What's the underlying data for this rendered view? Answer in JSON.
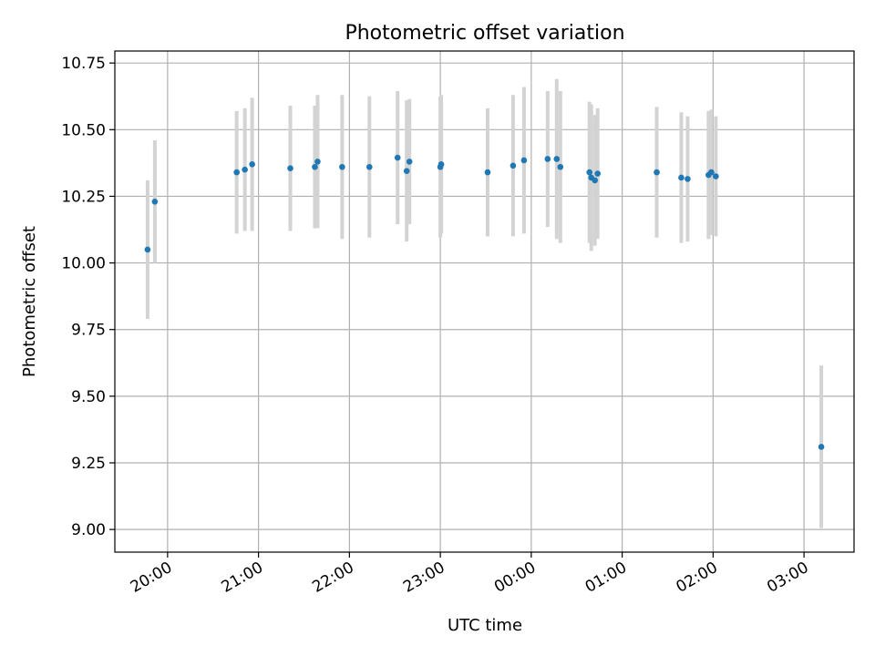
{
  "chart_data": {
    "type": "scatter",
    "title": "Photometric offset variation",
    "xlabel": "UTC time",
    "ylabel": "Photometric offset",
    "x_unit": "hours",
    "xlim": [
      19.42,
      27.55
    ],
    "ylim": [
      8.915,
      10.795
    ],
    "x_ticks": [
      {
        "value": 20,
        "label": "20:00"
      },
      {
        "value": 21,
        "label": "21:00"
      },
      {
        "value": 22,
        "label": "22:00"
      },
      {
        "value": 23,
        "label": "23:00"
      },
      {
        "value": 24,
        "label": "00:00"
      },
      {
        "value": 25,
        "label": "01:00"
      },
      {
        "value": 26,
        "label": "02:00"
      },
      {
        "value": 27,
        "label": "03:00"
      }
    ],
    "y_ticks": [
      {
        "value": 9.0,
        "label": "9.00"
      },
      {
        "value": 9.25,
        "label": "9.25"
      },
      {
        "value": 9.5,
        "label": "9.50"
      },
      {
        "value": 9.75,
        "label": "9.75"
      },
      {
        "value": 10.0,
        "label": "10.00"
      },
      {
        "value": 10.25,
        "label": "10.25"
      },
      {
        "value": 10.5,
        "label": "10.50"
      },
      {
        "value": 10.75,
        "label": "10.75"
      }
    ],
    "grid": true,
    "marker_color": "#1f77b4",
    "errorbar_color": "#d3d3d3",
    "points": [
      {
        "x": 19.78,
        "y": 10.05,
        "err": 0.26
      },
      {
        "x": 19.86,
        "y": 10.23,
        "err": 0.23
      },
      {
        "x": 20.76,
        "y": 10.34,
        "err": 0.23
      },
      {
        "x": 20.85,
        "y": 10.35,
        "err": 0.23
      },
      {
        "x": 20.93,
        "y": 10.37,
        "err": 0.25
      },
      {
        "x": 21.35,
        "y": 10.355,
        "err": 0.235
      },
      {
        "x": 21.62,
        "y": 10.36,
        "err": 0.23
      },
      {
        "x": 21.65,
        "y": 10.38,
        "err": 0.25
      },
      {
        "x": 21.92,
        "y": 10.36,
        "err": 0.27
      },
      {
        "x": 22.22,
        "y": 10.36,
        "err": 0.265
      },
      {
        "x": 22.53,
        "y": 10.395,
        "err": 0.25
      },
      {
        "x": 22.63,
        "y": 10.345,
        "err": 0.265
      },
      {
        "x": 22.66,
        "y": 10.38,
        "err": 0.235
      },
      {
        "x": 23.0,
        "y": 10.36,
        "err": 0.265
      },
      {
        "x": 23.01,
        "y": 10.37,
        "err": 0.26
      },
      {
        "x": 23.52,
        "y": 10.34,
        "err": 0.24
      },
      {
        "x": 23.8,
        "y": 10.365,
        "err": 0.265
      },
      {
        "x": 23.92,
        "y": 10.385,
        "err": 0.275
      },
      {
        "x": 24.18,
        "y": 10.39,
        "err": 0.255
      },
      {
        "x": 24.28,
        "y": 10.39,
        "err": 0.3
      },
      {
        "x": 24.32,
        "y": 10.36,
        "err": 0.285
      },
      {
        "x": 24.64,
        "y": 10.34,
        "err": 0.265
      },
      {
        "x": 24.66,
        "y": 10.32,
        "err": 0.275
      },
      {
        "x": 24.7,
        "y": 10.31,
        "err": 0.245
      },
      {
        "x": 24.73,
        "y": 10.335,
        "err": 0.245
      },
      {
        "x": 25.38,
        "y": 10.34,
        "err": 0.245
      },
      {
        "x": 25.65,
        "y": 10.32,
        "err": 0.245
      },
      {
        "x": 25.72,
        "y": 10.315,
        "err": 0.235
      },
      {
        "x": 25.95,
        "y": 10.33,
        "err": 0.24
      },
      {
        "x": 25.98,
        "y": 10.34,
        "err": 0.235
      },
      {
        "x": 26.03,
        "y": 10.325,
        "err": 0.225
      },
      {
        "x": 27.19,
        "y": 9.31,
        "err": 0.305
      }
    ]
  }
}
